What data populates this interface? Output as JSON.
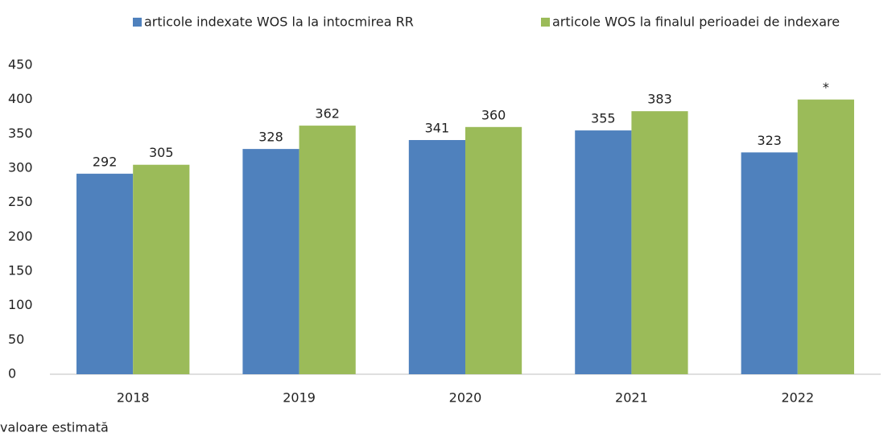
{
  "chart_data": {
    "type": "bar",
    "categories": [
      "2018",
      "2019",
      "2020",
      "2021",
      "2022"
    ],
    "series": [
      {
        "name": "articole indexate WOS la la intocmirea RR",
        "color": "#4f81bd",
        "values": [
          292,
          328,
          341,
          355,
          323
        ]
      },
      {
        "name": "articole WOS la finalul perioadei de indexare",
        "color": "#9bbb59",
        "values": [
          305,
          362,
          360,
          383,
          400
        ],
        "value_labels": [
          "305",
          "362",
          "360",
          "383",
          "*"
        ]
      }
    ],
    "ylim": [
      0,
      450
    ],
    "yticks": [
      0,
      50,
      100,
      150,
      200,
      250,
      300,
      350,
      400,
      450
    ],
    "grid": false,
    "legend": "top",
    "footnote": "valoare estimată"
  }
}
